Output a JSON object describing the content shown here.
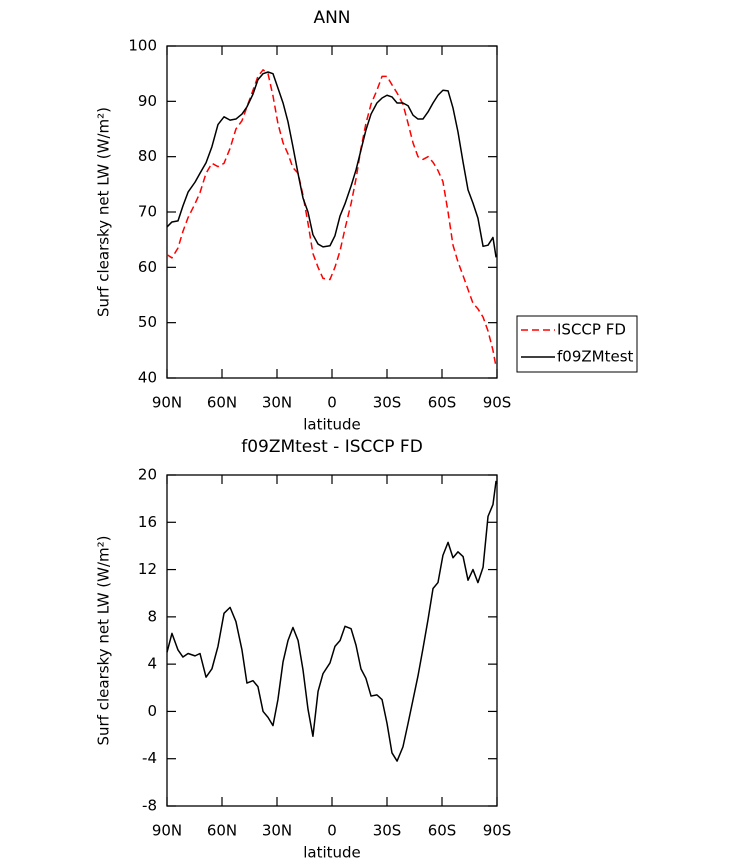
{
  "chart_data": [
    {
      "type": "line",
      "title": "ANN",
      "xlabel": "latitude",
      "ylabel": "Surf clearsky net LW (W/m²)",
      "x": [
        90,
        87.3,
        84,
        81.3,
        78.5,
        74.7,
        72,
        68.7,
        65.5,
        62.2,
        58.9,
        55.6,
        52.4,
        49.1,
        46.4,
        43.1,
        40.4,
        37.6,
        34.9,
        32.2,
        29.5,
        26.7,
        24,
        21.3,
        18.5,
        15.8,
        13.1,
        10.4,
        7.6,
        4.9,
        1.1,
        -1.6,
        -4.4,
        -7.1,
        -10.4,
        -13.1,
        -15.8,
        -18.5,
        -21.3,
        -24.5,
        -27.3,
        -30,
        -32.7,
        -35.5,
        -38.7,
        -41.5,
        -44.2,
        -46.9,
        -49.6,
        -52.4,
        -55.1,
        -57.8,
        -60.5,
        -63.3,
        -66,
        -68.7,
        -71.5,
        -74.2,
        -76.9,
        -79.6,
        -82.4,
        -85.1,
        -87.8,
        -89.5
      ],
      "series": [
        {
          "name": "ISCCP FD",
          "color": "#ff0000",
          "dashed": true,
          "values": [
            62.3,
            61.7,
            63.5,
            66.5,
            69.0,
            71.5,
            73.5,
            77.0,
            78.8,
            78.2,
            78.8,
            81.5,
            85.0,
            86.5,
            89.0,
            92.0,
            94.5,
            95.7,
            95.0,
            91.0,
            86.0,
            82.5,
            80.5,
            78.0,
            77.0,
            73.0,
            68.0,
            62.5,
            60.0,
            58.0,
            57.8,
            60.0,
            63.0,
            67.0,
            71.5,
            76.0,
            81.5,
            86.0,
            89.5,
            92.0,
            94.5,
            94.5,
            93.0,
            91.5,
            89.5,
            86.0,
            82.5,
            80.0,
            79.5,
            80.0,
            79.0,
            77.5,
            75.5,
            70.0,
            64.0,
            61.0,
            58.5,
            56.0,
            53.5,
            52.5,
            51.0,
            48.5,
            45.0,
            42.0
          ]
        },
        {
          "name": "f09ZMtest",
          "color": "#000000",
          "dashed": false,
          "values": [
            67.3,
            68.2,
            68.4,
            71.1,
            73.6,
            75.4,
            77.0,
            78.9,
            81.8,
            85.8,
            87.2,
            86.6,
            86.8,
            87.7,
            89.0,
            91.3,
            93.9,
            95.0,
            95.3,
            95.0,
            92.4,
            89.7,
            86.3,
            81.8,
            76.9,
            72.5,
            70.0,
            65.9,
            64.2,
            63.7,
            63.9,
            65.7,
            69.3,
            71.5,
            74.7,
            77.6,
            81.2,
            84.8,
            87.7,
            89.7,
            90.6,
            91.1,
            90.8,
            89.7,
            89.7,
            89.2,
            87.5,
            86.8,
            86.8,
            88.1,
            89.7,
            91.1,
            92.0,
            91.9,
            88.8,
            84.5,
            79.0,
            74.0,
            71.6,
            68.9,
            63.8,
            64.0,
            65.4,
            61.8
          ]
        }
      ],
      "xlim": [
        90,
        -90
      ],
      "xticks": [
        {
          "value": 90,
          "label": "90N"
        },
        {
          "value": 60,
          "label": "60N"
        },
        {
          "value": 30,
          "label": "30N"
        },
        0,
        {
          "value": -30,
          "label": "30S"
        },
        {
          "value": -60,
          "label": "60S"
        },
        {
          "value": -90,
          "label": "90S"
        }
      ],
      "ylim": [
        40,
        100
      ],
      "yticks": [
        40,
        50,
        60,
        70,
        80,
        90,
        100
      ],
      "legend": "right"
    },
    {
      "type": "line",
      "title": "f09ZMtest - ISCCP FD",
      "xlabel": "latitude",
      "ylabel": "Surf clearsky net LW (W/m²)",
      "x": [
        90,
        87.3,
        84,
        81.3,
        78.5,
        74.7,
        72,
        68.7,
        65.5,
        62.2,
        58.9,
        55.6,
        52.4,
        49.1,
        46.4,
        43.1,
        40.4,
        37.6,
        34.9,
        32.2,
        29.5,
        26.7,
        24,
        21.3,
        18.5,
        15.8,
        13.1,
        10.4,
        7.6,
        4.9,
        1.1,
        -1.6,
        -4.4,
        -7.1,
        -10.4,
        -13.1,
        -15.8,
        -18.5,
        -21.3,
        -24.5,
        -27.3,
        -30,
        -32.7,
        -35.5,
        -38.7,
        -41.5,
        -44.2,
        -46.9,
        -49.6,
        -52.4,
        -55.1,
        -57.8,
        -60.5,
        -63.3,
        -66,
        -68.7,
        -71.5,
        -74.2,
        -76.9,
        -79.6,
        -82.4,
        -85.1,
        -87.8,
        -89.5
      ],
      "values": [
        5.0,
        6.6,
        5.2,
        4.6,
        4.9,
        4.7,
        4.9,
        2.9,
        3.6,
        5.5,
        8.3,
        8.8,
        7.6,
        5.2,
        2.4,
        2.6,
        2.1,
        0,
        -0.5,
        -1.2,
        1.0,
        4.2,
        6.0,
        7.1,
        6.0,
        3.5,
        0.2,
        -2.1,
        1.7,
        3.2,
        4.1,
        5.5,
        6.0,
        7.2,
        7.0,
        5.6,
        3.6,
        2.8,
        1.3,
        1.4,
        1.0,
        -1.0,
        -3.5,
        -4.2,
        -3.0,
        -1.0,
        1.0,
        3.0,
        5.3,
        7.8,
        10.4,
        10.9,
        13.2,
        14.3,
        13.0,
        13.5,
        13.1,
        11.1,
        12.0,
        10.9,
        12.2,
        16.5,
        17.5,
        19.5
      ],
      "color": "#000000",
      "xlim": [
        90,
        -90
      ],
      "xticks": [
        {
          "value": 90,
          "label": "90N"
        },
        {
          "value": 60,
          "label": "60N"
        },
        {
          "value": 30,
          "label": "30N"
        },
        0,
        {
          "value": -30,
          "label": "30S"
        },
        {
          "value": -60,
          "label": "60S"
        },
        {
          "value": -90,
          "label": "90S"
        }
      ],
      "ylim": [
        -8,
        20
      ],
      "yticks": [
        -8,
        -4,
        0,
        4,
        8,
        12,
        16,
        20
      ]
    }
  ]
}
